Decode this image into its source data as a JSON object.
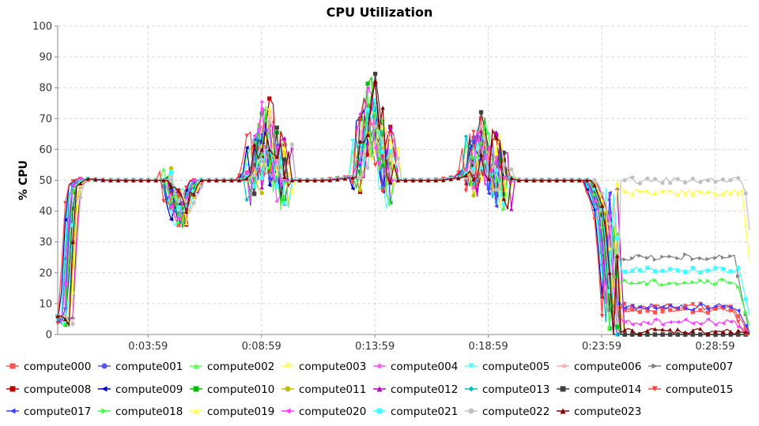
{
  "chart_data": {
    "type": "line",
    "title": "CPU Utilization",
    "xlabel": "",
    "ylabel": "% CPU",
    "xlim": [
      0,
      1830
    ],
    "ylim": [
      0,
      100
    ],
    "x_tick_seconds": [
      239,
      539,
      839,
      1139,
      1439,
      1739
    ],
    "x_tick_labels": [
      "0:03:59",
      "0:08:59",
      "0:13:59",
      "0:18:59",
      "0:23:59",
      "0:28:59"
    ],
    "y_ticks": [
      0,
      10,
      20,
      30,
      40,
      50,
      60,
      70,
      80,
      90,
      100
    ],
    "grid": true,
    "legend_position": "bottom",
    "x_units": "seconds (tick labels shown as h:mm:ss)",
    "series_profile": {
      "x": [
        0,
        15,
        25,
        35,
        60,
        120,
        280,
        300,
        320,
        360,
        480,
        520,
        540,
        560,
        580,
        600,
        700,
        780,
        800,
        820,
        840,
        880,
        940,
        1000,
        1060,
        1100,
        1120,
        1160,
        1200,
        1240,
        1400,
        1430,
        1445,
        1455,
        1465,
        1490,
        1560,
        1720,
        1800,
        1810,
        1820,
        1830
      ],
      "values": [
        6,
        3,
        30,
        48,
        50.5,
        50,
        50,
        45,
        38,
        50,
        50,
        55,
        65,
        60,
        52,
        50,
        50,
        51,
        62,
        70,
        65,
        50,
        50,
        50,
        51,
        56,
        60,
        52,
        50,
        50,
        50,
        40,
        20,
        0,
        0,
        0,
        0,
        0,
        0,
        0,
        0,
        0
      ]
    },
    "series": [
      {
        "name": "compute000",
        "color": "#ff5555",
        "marker": "square",
        "offset": 0,
        "tail": 8,
        "spike": 1.0
      },
      {
        "name": "compute001",
        "color": "#5555ff",
        "marker": "circle",
        "offset": 2,
        "tail": 0,
        "spike": 0.9
      },
      {
        "name": "compute002",
        "color": "#55ff55",
        "marker": "triangle-up",
        "offset": -1,
        "tail": 0,
        "spike": 1.2
      },
      {
        "name": "compute003",
        "color": "#ffff55",
        "marker": "triangle-down",
        "offset": 3,
        "tail": 0,
        "spike": 0.8
      },
      {
        "name": "compute004",
        "color": "#ff55ff",
        "marker": "diamond",
        "offset": 1,
        "tail": 0,
        "spike": 1.1
      },
      {
        "name": "compute005",
        "color": "#55ffff",
        "marker": "triangle-down",
        "offset": -2,
        "tail": 0,
        "spike": 0.7
      },
      {
        "name": "compute006",
        "color": "#ffafaf",
        "marker": "triangle-left",
        "offset": 4,
        "tail": 0,
        "spike": 0.9
      },
      {
        "name": "compute007",
        "color": "#808080",
        "marker": "triangle-right",
        "offset": 0,
        "tail": 25,
        "spike": 1.0
      },
      {
        "name": "compute008",
        "color": "#c00000",
        "marker": "square",
        "offset": 5,
        "tail": 0,
        "spike": 1.3
      },
      {
        "name": "compute009",
        "color": "#0000c0",
        "marker": "triangle-left",
        "offset": -3,
        "tail": 0,
        "spike": 0.8
      },
      {
        "name": "compute010",
        "color": "#00c000",
        "marker": "square",
        "offset": 2,
        "tail": 0,
        "spike": 1.2
      },
      {
        "name": "compute011",
        "color": "#c0c000",
        "marker": "circle",
        "offset": 6,
        "tail": 0,
        "spike": 0.9
      },
      {
        "name": "compute012",
        "color": "#c000c0",
        "marker": "triangle-up",
        "offset": 8,
        "tail": 0,
        "spike": 1.1
      },
      {
        "name": "compute013",
        "color": "#00c0c0",
        "marker": "diamond",
        "offset": -1,
        "tail": 0,
        "spike": 1.0
      },
      {
        "name": "compute014",
        "color": "#404040",
        "marker": "square",
        "offset": 3,
        "tail": 0,
        "spike": 1.4
      },
      {
        "name": "compute015",
        "color": "#ff4040",
        "marker": "triangle-down",
        "offset": -4,
        "tail": 9,
        "spike": 0.9
      },
      {
        "name": "compute017",
        "color": "#4040ff",
        "marker": "triangle-left",
        "offset": 1,
        "tail": 9,
        "spike": 0.8
      },
      {
        "name": "compute018",
        "color": "#40ff40",
        "marker": "triangle-right",
        "offset": 2,
        "tail": 17,
        "spike": 1.0
      },
      {
        "name": "compute019",
        "color": "#ffff40",
        "marker": "triangle-up",
        "offset": 7,
        "tail": 46,
        "spike": 0.9
      },
      {
        "name": "compute020",
        "color": "#ff40ff",
        "marker": "triangle-left",
        "offset": 0,
        "tail": 4,
        "spike": 1.0
      },
      {
        "name": "compute021",
        "color": "#40ffff",
        "marker": "square",
        "offset": 4,
        "tail": 21,
        "spike": 1.1
      },
      {
        "name": "compute022",
        "color": "#c0c0c0",
        "marker": "circle",
        "offset": 9,
        "tail": 50,
        "spike": 0.9
      },
      {
        "name": "compute023",
        "color": "#800000",
        "marker": "triangle-up",
        "offset": 5,
        "tail": 1,
        "spike": 1.2
      }
    ]
  }
}
